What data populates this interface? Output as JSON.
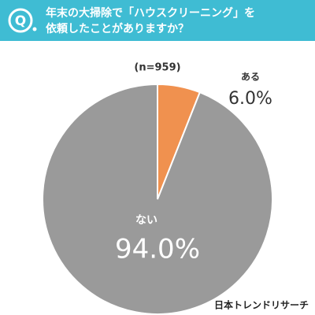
{
  "header": {
    "q_label": "Q",
    "title": [
      "年末の大掃除で「ハウスクリーニング」を",
      "依頼したことがありますか？"
    ]
  },
  "chart_data": {
    "type": "pie",
    "subtitle": "(n=959)",
    "categories": [
      "ある",
      "ない"
    ],
    "values": [
      6.0,
      94.0
    ],
    "value_labels": [
      "6.0%",
      "94.0%"
    ],
    "colors": [
      "#f0914f",
      "#9a9a9a"
    ],
    "start_angle": 0,
    "direction": "clockwise"
  },
  "footer": {
    "source": "日本トレンドリサーチ"
  }
}
